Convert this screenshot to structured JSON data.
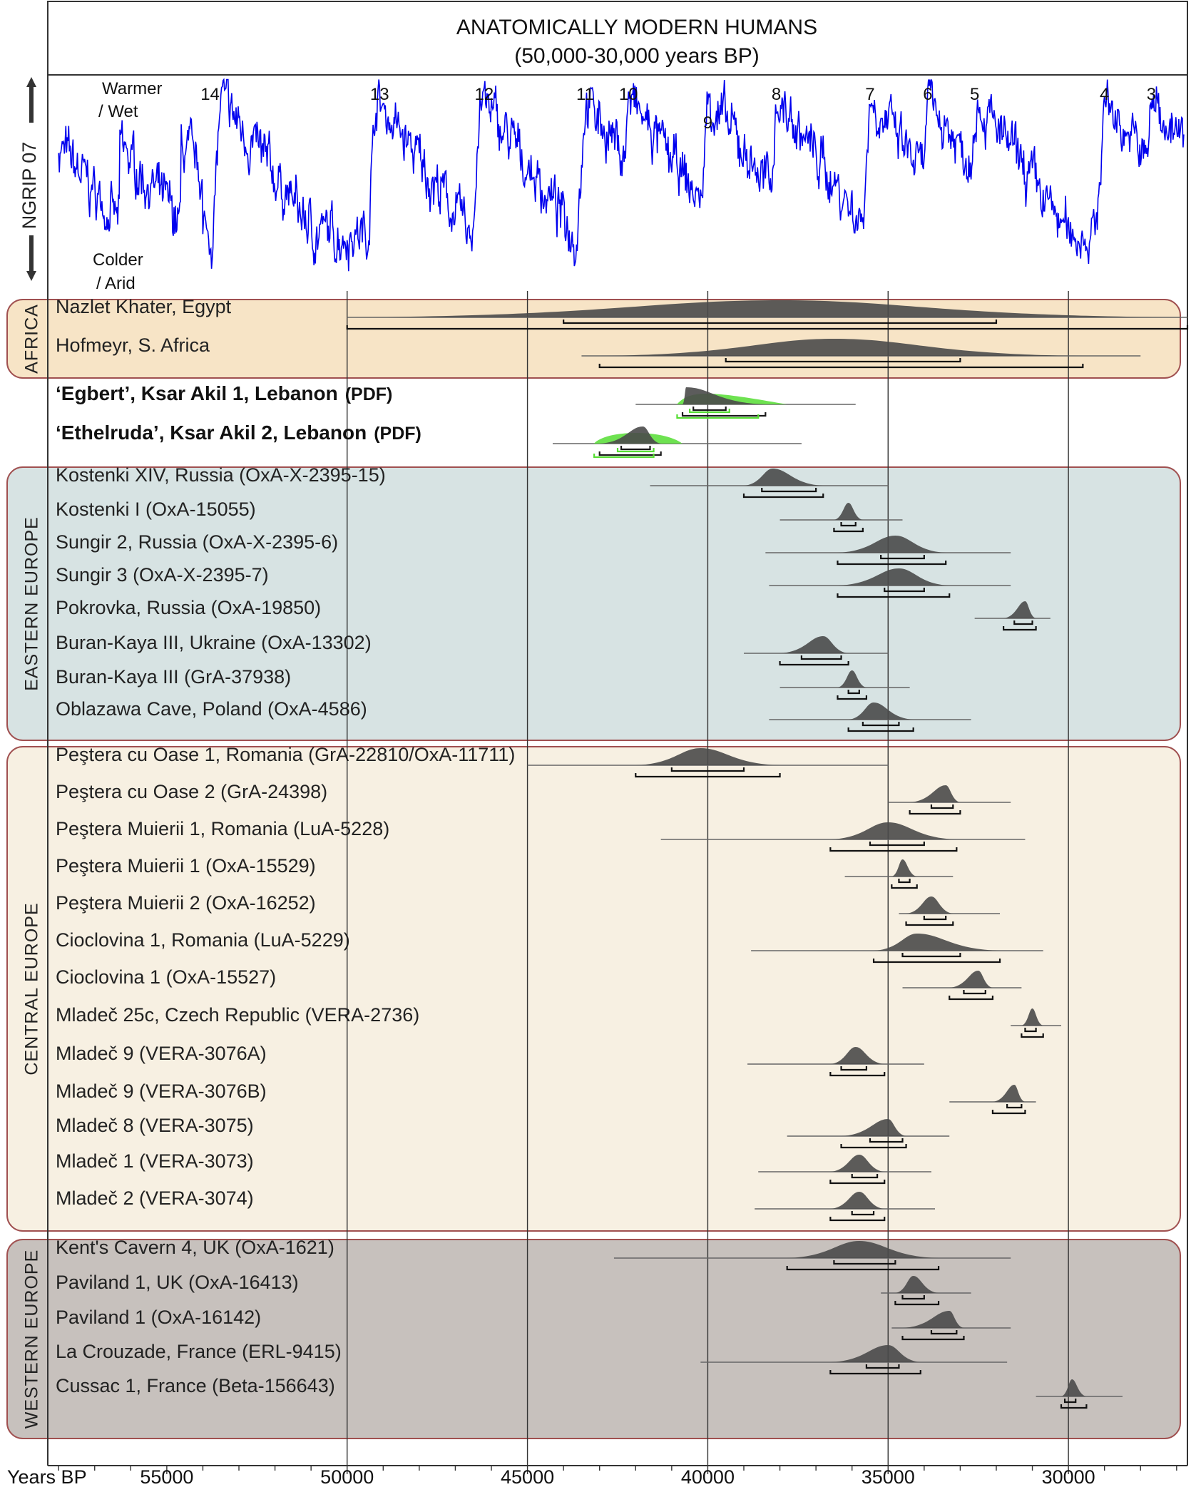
{
  "chart_data": {
    "type": "range",
    "title": "ANATOMICALLY MODERN HUMANS",
    "subtitle": "(50,000-30,000 years BP)",
    "xlabel": "Years BP",
    "x_reversed": true,
    "xlim": [
      58300,
      26700
    ],
    "x_ticks": [
      55000,
      50000,
      45000,
      40000,
      35000,
      30000
    ],
    "x_tick_labels": [
      "55000",
      "50000",
      "45000",
      "40000",
      "35000",
      "30000"
    ],
    "vertical_gridlines": [
      50000,
      45000,
      40000,
      35000,
      30000
    ],
    "climate_panel": {
      "ylabel": "NGRIP 07",
      "warm_label": "Warmer / Wet",
      "warm_line1": "Warmer",
      "warm_line2": "/ Wet",
      "cold_label": "Colder / Arid",
      "cold_line1": "Colder",
      "cold_line2": "/ Arid",
      "line_color": "#0000ee",
      "interstadials": [
        {
          "label": "14",
          "x": 53800
        },
        {
          "label": "13",
          "x": 49100
        },
        {
          "label": "12",
          "x": 46200
        },
        {
          "label": "11",
          "x": 43400
        },
        {
          "label": "10",
          "x": 42200
        },
        {
          "label": "9",
          "x": 40000
        },
        {
          "label": "8",
          "x": 38100
        },
        {
          "label": "7",
          "x": 35500
        },
        {
          "label": "6",
          "x": 33900
        },
        {
          "label": "5",
          "x": 32600
        },
        {
          "label": "4",
          "x": 29000
        },
        {
          "label": "3",
          "x": 27700
        }
      ]
    },
    "regions": [
      {
        "name": "AFRICA",
        "fill": "#f7e4c6"
      },
      {
        "name": "EASTERN EUROPE",
        "fill": "#d7e3e3"
      },
      {
        "name": "CENTRAL EUROPE",
        "fill": "#f7f0e2"
      },
      {
        "name": "WESTERN EUROPE",
        "fill": "#c7c1bd"
      }
    ],
    "sample_color": "#4a4a4a",
    "pdf_color": "#55dd33",
    "samples": [
      {
        "label": "Nazlet Khater, Egypt",
        "region": "AFRICA",
        "bold": false,
        "range": [
          50000,
          26700
        ],
        "peak": 38000,
        "sigma1": [
          44000,
          32000
        ],
        "sigma2": [
          50000,
          26700
        ]
      },
      {
        "label": "Hofmeyr, S. Africa",
        "region": "AFRICA",
        "bold": false,
        "range": [
          43500,
          28000
        ],
        "peak": 36500,
        "sigma1": [
          39500,
          33000
        ],
        "sigma2": [
          43000,
          29600
        ]
      },
      {
        "label": "‘Egbert’, Ksar Akil 1, Lebanon",
        "suffix": "(PDF)",
        "region": "none",
        "bold": true,
        "range": [
          42000,
          35900
        ],
        "peak": 40600,
        "sigma1": [
          40400,
          39500
        ],
        "sigma2": [
          40700,
          38400
        ],
        "pdf": true
      },
      {
        "label": "‘Ethelruda’, Ksar Akil 2, Lebanon",
        "suffix": "(PDF)",
        "region": "none",
        "bold": true,
        "range": [
          44300,
          37400
        ],
        "peak": 41800,
        "sigma1": [
          42400,
          41600
        ],
        "sigma2": [
          43000,
          41300
        ],
        "pdf": true
      },
      {
        "label": "Kostenki XIV, Russia (OxA-X-2395-15)",
        "region": "EASTERN EUROPE",
        "bold": false,
        "range": [
          41600,
          35000
        ],
        "peak": 38200,
        "sigma1": [
          38500,
          37000
        ],
        "sigma2": [
          39000,
          36800
        ]
      },
      {
        "label": "Kostenki I (OxA-15055)",
        "region": "EASTERN EUROPE",
        "bold": false,
        "range": [
          38000,
          34600
        ],
        "peak": 36100,
        "sigma1": [
          36300,
          35900
        ],
        "sigma2": [
          36500,
          35700
        ]
      },
      {
        "label": "Sungir 2, Russia (OxA-X-2395-6)",
        "region": "EASTERN EUROPE",
        "bold": false,
        "range": [
          38400,
          31600
        ],
        "peak": 34800,
        "sigma1": [
          35200,
          34000
        ],
        "sigma2": [
          36400,
          33400
        ]
      },
      {
        "label": "Sungir 3 (OxA-X-2395-7)",
        "region": "EASTERN EUROPE",
        "bold": false,
        "range": [
          38300,
          31600
        ],
        "peak": 34700,
        "sigma1": [
          35100,
          34000
        ],
        "sigma2": [
          36400,
          33300
        ]
      },
      {
        "label": "Pokrovka, Russia (OxA-19850)",
        "region": "EASTERN EUROPE",
        "bold": false,
        "range": [
          32600,
          30500
        ],
        "peak": 31200,
        "sigma1": [
          31500,
          31000
        ],
        "sigma2": [
          31800,
          30900
        ]
      },
      {
        "label": "Buran-Kaya III, Ukraine (OxA-13302)",
        "region": "EASTERN EUROPE",
        "bold": false,
        "range": [
          39000,
          35000
        ],
        "peak": 36800,
        "sigma1": [
          37400,
          36300
        ],
        "sigma2": [
          38000,
          36100
        ]
      },
      {
        "label": "Buran-Kaya III  (GrA-37938)",
        "region": "EASTERN EUROPE",
        "bold": false,
        "range": [
          38000,
          34400
        ],
        "peak": 36000,
        "sigma1": [
          36100,
          35800
        ],
        "sigma2": [
          36400,
          35600
        ]
      },
      {
        "label": "Oblazawa Cave, Poland (OxA-4586)",
        "region": "EASTERN EUROPE",
        "bold": false,
        "range": [
          38300,
          32700
        ],
        "peak": 35400,
        "sigma1": [
          35700,
          34700
        ],
        "sigma2": [
          36100,
          34300
        ]
      },
      {
        "label": "Peştera cu Oase 1, Romania (GrA-22810/OxA-11711)",
        "region": "CENTRAL EUROPE",
        "bold": false,
        "range": [
          45000,
          35000
        ],
        "peak": 40200,
        "sigma1": [
          41000,
          39000
        ],
        "sigma2": [
          42000,
          38000
        ]
      },
      {
        "label": "Peştera cu Oase 2 (GrA-24398)",
        "region": "CENTRAL EUROPE",
        "bold": false,
        "range": [
          35000,
          31600
        ],
        "peak": 33400,
        "sigma1": [
          33800,
          33200
        ],
        "sigma2": [
          34400,
          33000
        ]
      },
      {
        "label": "Peştera Muierii 1, Romania (LuA-5228)",
        "region": "CENTRAL EUROPE",
        "bold": false,
        "range": [
          41300,
          31200
        ],
        "peak": 35000,
        "sigma1": [
          35500,
          34000
        ],
        "sigma2": [
          36600,
          33100
        ]
      },
      {
        "label": "Peştera Muierii 1 (OxA-15529)",
        "region": "CENTRAL EUROPE",
        "bold": false,
        "range": [
          36200,
          33200
        ],
        "peak": 34600,
        "sigma1": [
          34700,
          34400
        ],
        "sigma2": [
          34900,
          34200
        ]
      },
      {
        "label": "Peştera Muierii 2 (OxA-16252)",
        "region": "CENTRAL EUROPE",
        "bold": false,
        "range": [
          34700,
          31900
        ],
        "peak": 33800,
        "sigma1": [
          34000,
          33400
        ],
        "sigma2": [
          34500,
          33200
        ]
      },
      {
        "label": "Cioclovina 1, Romania (LuA-5229)",
        "region": "CENTRAL EUROPE",
        "bold": false,
        "range": [
          38800,
          30700
        ],
        "peak": 34200,
        "sigma1": [
          34600,
          33000
        ],
        "sigma2": [
          35400,
          31900
        ]
      },
      {
        "label": "Cioclovina 1 (OxA-15527)",
        "region": "CENTRAL EUROPE",
        "bold": false,
        "range": [
          34600,
          31300
        ],
        "peak": 32500,
        "sigma1": [
          32900,
          32300
        ],
        "sigma2": [
          33300,
          32100
        ]
      },
      {
        "label": "Mladeč 25c, Czech Republic (VERA-2736)",
        "region": "CENTRAL EUROPE",
        "bold": false,
        "range": [
          31600,
          30200
        ],
        "peak": 31000,
        "sigma1": [
          31200,
          30900
        ],
        "sigma2": [
          31300,
          30700
        ]
      },
      {
        "label": "Mladeč 9 (VERA-3076A)",
        "region": "CENTRAL EUROPE",
        "bold": false,
        "range": [
          38900,
          34000
        ],
        "peak": 35900,
        "sigma1": [
          36300,
          35600
        ],
        "sigma2": [
          36600,
          35100
        ]
      },
      {
        "label": "Mladeč 9 (VERA-3076B)",
        "region": "CENTRAL EUROPE",
        "bold": false,
        "range": [
          33300,
          30900
        ],
        "peak": 31500,
        "sigma1": [
          31700,
          31300
        ],
        "sigma2": [
          32100,
          31200
        ]
      },
      {
        "label": "Mladeč 8 (VERA-3075)",
        "region": "CENTRAL EUROPE",
        "bold": false,
        "range": [
          37800,
          33300
        ],
        "peak": 35000,
        "sigma1": [
          35500,
          34600
        ],
        "sigma2": [
          36300,
          34500
        ]
      },
      {
        "label": "Mladeč 1 (VERA-3073)",
        "region": "CENTRAL EUROPE",
        "bold": false,
        "range": [
          38600,
          33800
        ],
        "peak": 35800,
        "sigma1": [
          36000,
          35300
        ],
        "sigma2": [
          36600,
          35100
        ]
      },
      {
        "label": "Mladeč 2 (VERA-3074)",
        "region": "CENTRAL EUROPE",
        "bold": false,
        "range": [
          38700,
          33700
        ],
        "peak": 35800,
        "sigma1": [
          36000,
          35400
        ],
        "sigma2": [
          36600,
          35100
        ]
      },
      {
        "label": "Kent's Cavern 4, UK (OxA-1621)",
        "region": "WESTERN EUROPE",
        "bold": false,
        "range": [
          42600,
          31600
        ],
        "peak": 35800,
        "sigma1": [
          36500,
          34800
        ],
        "sigma2": [
          37800,
          33600
        ]
      },
      {
        "label": "Paviland 1, UK (OxA-16413)",
        "region": "WESTERN EUROPE",
        "bold": false,
        "range": [
          35200,
          32700
        ],
        "peak": 34300,
        "sigma1": [
          34600,
          34000
        ],
        "sigma2": [
          34800,
          33600
        ]
      },
      {
        "label": "Paviland 1 (OxA-16142)",
        "region": "WESTERN EUROPE",
        "bold": false,
        "range": [
          34900,
          31600
        ],
        "peak": 33300,
        "sigma1": [
          33800,
          33100
        ],
        "sigma2": [
          34600,
          32900
        ]
      },
      {
        "label": "La Crouzade, France (ERL-9415)",
        "region": "WESTERN EUROPE",
        "bold": false,
        "range": [
          40200,
          31700
        ],
        "peak": 35000,
        "sigma1": [
          35600,
          34700
        ],
        "sigma2": [
          36600,
          34100
        ]
      },
      {
        "label": "Cussac 1, France (Beta-156643)",
        "region": "WESTERN EUROPE",
        "bold": false,
        "range": [
          30900,
          28500
        ],
        "peak": 29900,
        "sigma1": [
          30100,
          29800
        ],
        "sigma2": [
          30200,
          29500
        ]
      }
    ]
  }
}
